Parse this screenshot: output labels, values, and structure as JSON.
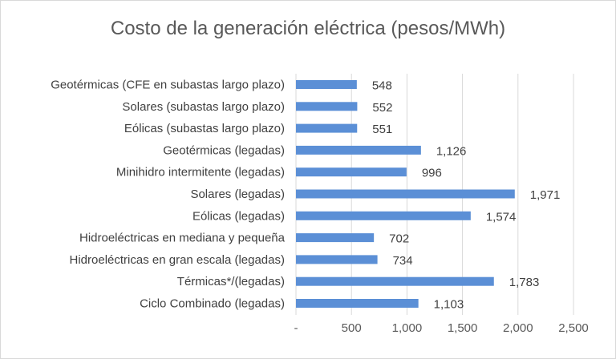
{
  "chart_data": {
    "type": "bar",
    "orientation": "horizontal",
    "title": "Costo de la generación eléctrica (pesos/MWh)",
    "categories": [
      "Geotérmicas (CFE en subastas largo plazo)",
      "Solares (subastas largo plazo)",
      "Eólicas (subastas largo plazo)",
      "Geotérmicas (legadas)",
      "Minihidro intermitente (legadas)",
      "Solares (legadas)",
      "Eólicas (legadas)",
      "Hidroeléctricas en mediana y pequeña",
      "Hidroeléctricas en gran escala (legadas)",
      "Térmicas*/(legadas)",
      "Ciclo Combinado (legadas)"
    ],
    "values": [
      548,
      552,
      551,
      1126,
      996,
      1971,
      1574,
      702,
      734,
      1783,
      1103
    ],
    "value_labels": [
      "548",
      "552",
      "551",
      "1,126",
      "996",
      "1,971",
      "1,574",
      "702",
      "734",
      "1,783",
      "1,103"
    ],
    "x_ticks": [
      "-",
      "500",
      "1,000",
      "1,500",
      "2,000",
      "2,500"
    ],
    "xlim": [
      0,
      2500
    ],
    "grid": "vertical",
    "legend": "none",
    "bar_color": "#5b8fd6",
    "grid_color": "#d9d9d9"
  }
}
